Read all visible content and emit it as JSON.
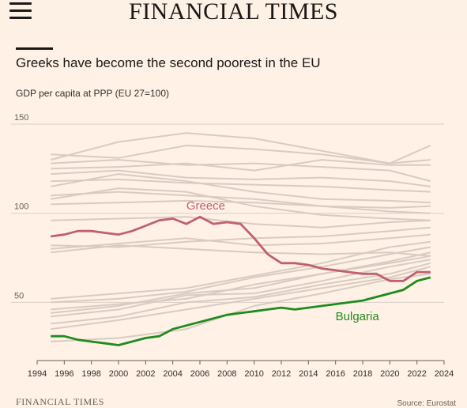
{
  "header": {
    "masthead": "FINANCIAL TIMES",
    "menu_icon": "hamburger-menu-icon"
  },
  "colors": {
    "background": "#fff1e5",
    "greece": "#c0606e",
    "bulgaria": "#1e8c1e",
    "other_countries": "#d8cbc3",
    "grid": "#d9cfc6"
  },
  "chart_data": {
    "type": "line",
    "title": "Greeks have become the second poorest in the EU",
    "ylabel": "GDP per capita at PPP (EU 27=100)",
    "ylim": [
      20,
      150
    ],
    "xlim": [
      1994,
      2024
    ],
    "grid": true,
    "y_ticks": [
      50,
      100,
      150
    ],
    "x_ticks": [
      1994,
      1996,
      1998,
      2000,
      2002,
      2004,
      2006,
      2008,
      2010,
      2012,
      2014,
      2016,
      2018,
      2020,
      2022,
      2024
    ],
    "highlighted_series": [
      {
        "name": "Greece",
        "color": "#c0606e",
        "x": [
          1995,
          1996,
          1997,
          1998,
          1999,
          2000,
          2001,
          2002,
          2003,
          2004,
          2005,
          2006,
          2007,
          2008,
          2009,
          2010,
          2011,
          2012,
          2013,
          2014,
          2015,
          2016,
          2017,
          2018,
          2019,
          2020,
          2021,
          2022,
          2023
        ],
        "values": [
          87,
          88,
          90,
          90,
          89,
          88,
          90,
          93,
          96,
          97,
          94,
          98,
          94,
          95,
          94,
          86,
          77,
          72,
          72,
          71,
          69,
          68,
          67,
          66,
          66,
          62,
          62,
          67,
          67
        ]
      },
      {
        "name": "Bulgaria",
        "color": "#1e8c1e",
        "x": [
          1995,
          1996,
          1997,
          1998,
          1999,
          2000,
          2001,
          2002,
          2003,
          2004,
          2005,
          2006,
          2007,
          2008,
          2009,
          2010,
          2011,
          2012,
          2013,
          2014,
          2015,
          2016,
          2017,
          2018,
          2019,
          2020,
          2021,
          2022,
          2023
        ],
        "values": [
          31,
          31,
          29,
          28,
          27,
          26,
          28,
          30,
          31,
          35,
          37,
          39,
          41,
          43,
          44,
          45,
          46,
          47,
          46,
          47,
          48,
          49,
          50,
          51,
          53,
          55,
          57,
          62,
          64
        ]
      }
    ],
    "background_series": [
      {
        "x": [
          1995,
          2000,
          2005,
          2010,
          2015,
          2020,
          2023
        ],
        "values": [
          133,
          131,
          138,
          136,
          133,
          128,
          138
        ]
      },
      {
        "x": [
          1995,
          2000,
          2005,
          2010,
          2015,
          2020,
          2023
        ],
        "values": [
          130,
          140,
          145,
          142,
          135,
          128,
          130
        ]
      },
      {
        "x": [
          1995,
          2000,
          2005,
          2010,
          2015,
          2020,
          2023
        ],
        "values": [
          128,
          130,
          127,
          128,
          126,
          124,
          118
        ]
      },
      {
        "x": [
          1995,
          2000,
          2005,
          2010,
          2015,
          2020,
          2023
        ],
        "values": [
          125,
          126,
          128,
          124,
          130,
          127,
          127
        ]
      },
      {
        "x": [
          1995,
          2000,
          2005,
          2010,
          2015,
          2020,
          2023
        ],
        "values": [
          122,
          124,
          120,
          119,
          120,
          118,
          115
        ]
      },
      {
        "x": [
          1995,
          2000,
          2005,
          2010,
          2015,
          2020,
          2023
        ],
        "values": [
          118,
          119,
          117,
          116,
          115,
          113,
          112
        ]
      },
      {
        "x": [
          1995,
          2000,
          2005,
          2010,
          2015,
          2020,
          2023
        ],
        "values": [
          115,
          122,
          118,
          112,
          108,
          107,
          106
        ]
      },
      {
        "x": [
          1995,
          2000,
          2005,
          2010,
          2015,
          2020,
          2023
        ],
        "values": [
          110,
          112,
          110,
          108,
          104,
          103,
          104
        ]
      },
      {
        "x": [
          1995,
          2000,
          2005,
          2010,
          2015,
          2020,
          2023
        ],
        "values": [
          108,
          114,
          112,
          104,
          99,
          97,
          96
        ]
      },
      {
        "x": [
          1995,
          2000,
          2005,
          2010,
          2015,
          2020,
          2023
        ],
        "values": [
          105,
          106,
          107,
          106,
          104,
          101,
          100
        ]
      },
      {
        "x": [
          1995,
          2000,
          2005,
          2010,
          2015,
          2020,
          2023
        ],
        "values": [
          96,
          97,
          98,
          94,
          92,
          95,
          96
        ]
      },
      {
        "x": [
          1995,
          2000,
          2005,
          2010,
          2015,
          2020,
          2023
        ],
        "values": [
          82,
          81,
          84,
          86,
          87,
          90,
          92
        ]
      },
      {
        "x": [
          1995,
          2000,
          2005,
          2010,
          2015,
          2020,
          2023
        ],
        "values": [
          80,
          83,
          86,
          82,
          83,
          86,
          88
        ]
      },
      {
        "x": [
          1995,
          2000,
          2005,
          2010,
          2015,
          2020,
          2023
        ],
        "values": [
          78,
          82,
          80,
          78,
          77,
          78,
          76
        ]
      },
      {
        "x": [
          1995,
          2000,
          2005,
          2010,
          2015,
          2020,
          2023
        ],
        "values": [
          52,
          55,
          58,
          65,
          72,
          81,
          84
        ]
      },
      {
        "x": [
          1995,
          2000,
          2005,
          2010,
          2015,
          2020,
          2023
        ],
        "values": [
          50,
          52,
          56,
          64,
          70,
          77,
          81
        ]
      },
      {
        "x": [
          1995,
          2000,
          2005,
          2010,
          2015,
          2020,
          2023
        ],
        "values": [
          46,
          49,
          52,
          60,
          66,
          73,
          78
        ]
      },
      {
        "x": [
          1995,
          2000,
          2005,
          2010,
          2015,
          2020,
          2023
        ],
        "values": [
          44,
          48,
          55,
          58,
          66,
          72,
          76
        ]
      },
      {
        "x": [
          1995,
          2000,
          2005,
          2010,
          2015,
          2020,
          2023
        ],
        "values": [
          42,
          46,
          54,
          55,
          62,
          70,
          74
        ]
      },
      {
        "x": [
          1995,
          2000,
          2005,
          2010,
          2015,
          2020,
          2023
        ],
        "values": [
          38,
          42,
          50,
          53,
          60,
          66,
          72
        ]
      },
      {
        "x": [
          1995,
          2000,
          2005,
          2010,
          2015,
          2020,
          2023
        ],
        "values": [
          35,
          40,
          46,
          52,
          58,
          64,
          70
        ]
      },
      {
        "x": [
          1995,
          2000,
          2005,
          2010,
          2015,
          2020,
          2023
        ],
        "values": [
          28,
          30,
          35,
          48,
          55,
          63,
          66
        ]
      }
    ],
    "annotations": [
      {
        "text": "Greece",
        "x": 2005,
        "y": 102,
        "color": "#c0606e"
      },
      {
        "text": "Bulgaria",
        "x": 2016,
        "y": 40,
        "color": "#1e8c1e"
      }
    ]
  },
  "footer": {
    "brand": "FINANCIAL TIMES",
    "source": "Source: Eurostat"
  }
}
